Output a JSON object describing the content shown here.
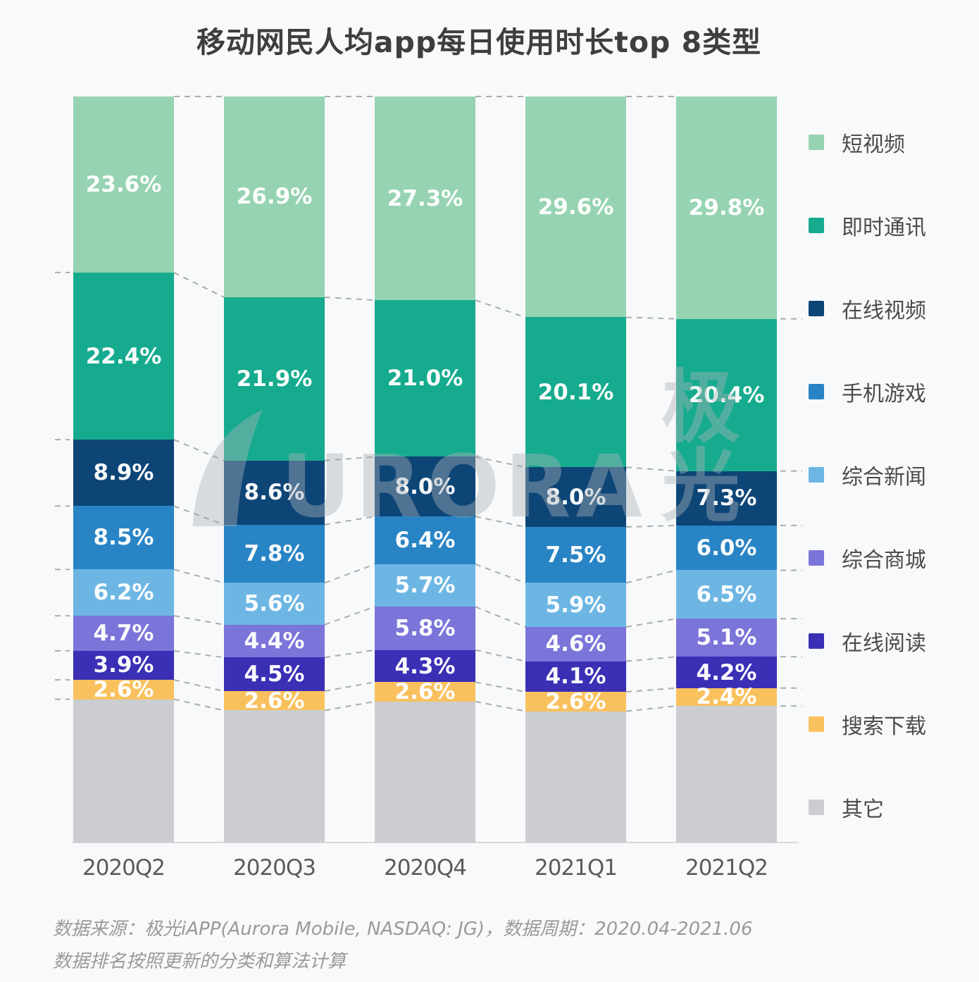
{
  "title": "移动网民人均app每日使用时长top 8类型",
  "watermark": {
    "latin": "URORA",
    "cjk": "极光"
  },
  "footer": {
    "line1": "数据来源：极光iAPP(Aurora Mobile, NASDAQ: JG)，数据周期：2020.04-2021.06",
    "line2": "数据排名按照更新的分类和算法计算"
  },
  "chart_data": {
    "type": "bar",
    "stacked": true,
    "normalized_to_100_percent": true,
    "unit": "%",
    "grid": false,
    "legend_position": "right",
    "value_label_format": "one_decimal_percent",
    "categories": [
      "2020Q2",
      "2020Q3",
      "2020Q4",
      "2021Q1",
      "2021Q2"
    ],
    "series": [
      {
        "name": "短视频",
        "color": "#96d3b2",
        "values": [
          23.6,
          26.9,
          27.3,
          29.6,
          29.8
        ],
        "show_labels": true
      },
      {
        "name": "即时通讯",
        "color": "#16ab8e",
        "values": [
          22.4,
          21.9,
          21.0,
          20.1,
          20.4
        ],
        "show_labels": true
      },
      {
        "name": "在线视频",
        "color": "#0d4577",
        "values": [
          8.9,
          8.6,
          8.0,
          8.0,
          7.3
        ],
        "show_labels": true
      },
      {
        "name": "手机游戏",
        "color": "#2884c5",
        "values": [
          8.5,
          7.8,
          6.4,
          7.5,
          6.0
        ],
        "show_labels": true
      },
      {
        "name": "综合新闻",
        "color": "#6db6e4",
        "values": [
          6.2,
          5.6,
          5.7,
          5.9,
          6.5
        ],
        "show_labels": true
      },
      {
        "name": "综合商城",
        "color": "#7b74d9",
        "values": [
          4.7,
          4.4,
          5.8,
          4.6,
          5.1
        ],
        "show_labels": true
      },
      {
        "name": "在线阅读",
        "color": "#3a2fb5",
        "values": [
          3.9,
          4.5,
          4.3,
          4.1,
          4.2
        ],
        "show_labels": true
      },
      {
        "name": "搜索下载",
        "color": "#f9c15e",
        "values": [
          2.6,
          2.6,
          2.6,
          2.6,
          2.4
        ],
        "show_labels": true
      },
      {
        "name": "其它",
        "color": "#cbcdd0",
        "values": [
          19.2,
          17.7,
          18.9,
          17.6,
          18.3
        ],
        "show_labels": false,
        "derived_remainder": true
      }
    ],
    "connector_style": {
      "color": "#9aa0a4",
      "dash": "8 7"
    }
  }
}
